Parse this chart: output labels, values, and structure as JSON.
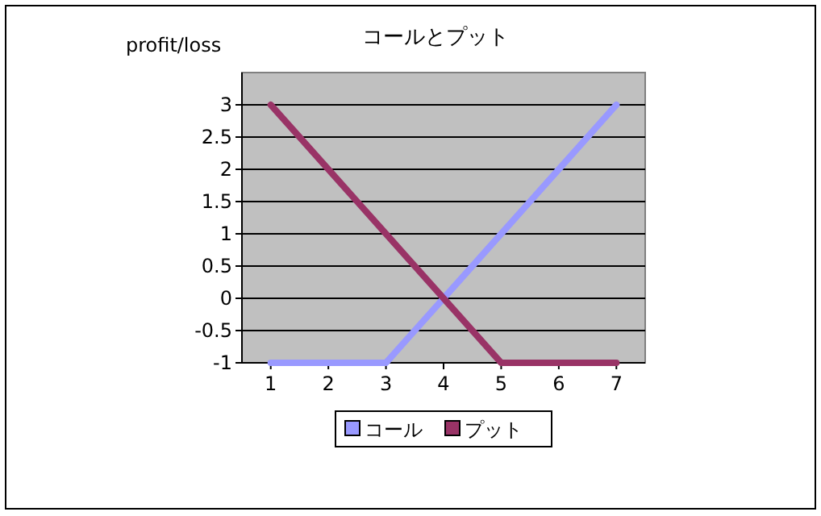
{
  "chart_data": {
    "type": "line",
    "title": "コールとプット",
    "ylabel": "profit/loss",
    "categories": [
      "1",
      "2",
      "3",
      "4",
      "5",
      "6",
      "7"
    ],
    "series": [
      {
        "name": "コール",
        "color": "#9999ff",
        "values": [
          -1,
          -1,
          -1,
          0,
          1,
          2,
          3
        ]
      },
      {
        "name": "プット",
        "color": "#993366",
        "values": [
          3,
          2,
          1,
          0,
          -1,
          -1,
          -1
        ]
      }
    ],
    "ylim": [
      -1,
      3.5
    ],
    "yticks": [
      -1,
      -0.5,
      0,
      0.5,
      1,
      1.5,
      2,
      2.5,
      3
    ],
    "grid": "y",
    "legend": "bottom"
  }
}
